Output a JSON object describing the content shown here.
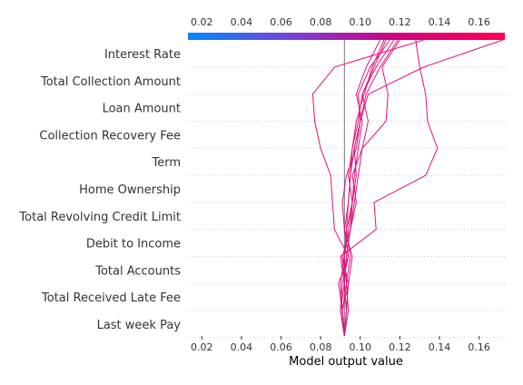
{
  "chart_data": {
    "type": "line",
    "subtype": "decision-plot",
    "title": "",
    "xlabel": "Model output value",
    "ylabel": "",
    "xlim": [
      0.013,
      0.173
    ],
    "xticks": [
      0.02,
      0.04,
      0.06,
      0.08,
      0.1,
      0.12,
      0.14,
      0.16
    ],
    "xtick_labels": [
      "0.02",
      "0.04",
      "0.06",
      "0.08",
      "0.10",
      "0.12",
      "0.14",
      "0.16"
    ],
    "base_value": 0.092,
    "colorbar": {
      "position": "top",
      "range": [
        0.013,
        0.173
      ],
      "colors": [
        "#008bfb",
        "#7c3fd4",
        "#d0007f",
        "#ff0052"
      ],
      "ticks": [
        0.02,
        0.04,
        0.06,
        0.08,
        0.1,
        0.12,
        0.14,
        0.16
      ]
    },
    "features": [
      "Interest Rate",
      "Total Collection Amount",
      "Loan Amount",
      "Collection Recovery Fee",
      "Term",
      "Home Ownership",
      "Total Revolving Credit Limit",
      "Debit to Income",
      "Total Accounts",
      "Total Received Late Fee",
      "Last week Pay"
    ],
    "line_color": "#e0137c",
    "grid": "dotted horizontal",
    "series": [
      {
        "values": [
          0.092,
          0.093,
          0.092,
          0.093,
          0.095,
          0.097,
          0.099,
          0.101,
          0.104,
          0.101,
          0.107,
          0.113
        ]
      },
      {
        "values": [
          0.092,
          0.091,
          0.093,
          0.092,
          0.094,
          0.096,
          0.097,
          0.099,
          0.101,
          0.098,
          0.103,
          0.11
        ]
      },
      {
        "values": [
          0.092,
          0.094,
          0.093,
          0.095,
          0.093,
          0.096,
          0.098,
          0.097,
          0.1,
          0.099,
          0.105,
          0.115
        ]
      },
      {
        "values": [
          0.092,
          0.09,
          0.091,
          0.094,
          0.092,
          0.094,
          0.095,
          0.096,
          0.098,
          0.102,
          0.106,
          0.112
        ]
      },
      {
        "values": [
          0.092,
          0.093,
          0.094,
          0.091,
          0.095,
          0.096,
          0.094,
          0.096,
          0.099,
          0.101,
          0.108,
          0.117
        ]
      },
      {
        "values": [
          0.092,
          0.091,
          0.094,
          0.096,
          0.092,
          0.091,
          0.093,
          0.098,
          0.1,
          0.103,
          0.11,
          0.119
        ]
      },
      {
        "values": [
          0.092,
          0.09,
          0.092,
          0.09,
          0.108,
          0.107,
          0.133,
          0.139,
          0.134,
          0.133,
          0.13,
          0.128
        ]
      },
      {
        "values": [
          0.092,
          0.091,
          0.089,
          0.094,
          0.087,
          0.086,
          0.085,
          0.08,
          0.077,
          0.076,
          0.087,
          0.132
        ]
      },
      {
        "values": [
          0.092,
          0.093,
          0.092,
          0.091,
          0.095,
          0.098,
          0.096,
          0.101,
          0.113,
          0.114,
          0.111,
          0.12
        ]
      },
      {
        "values": [
          0.092,
          0.091,
          0.09,
          0.092,
          0.093,
          0.094,
          0.095,
          0.097,
          0.1,
          0.104,
          0.132,
          0.172
        ]
      }
    ]
  }
}
